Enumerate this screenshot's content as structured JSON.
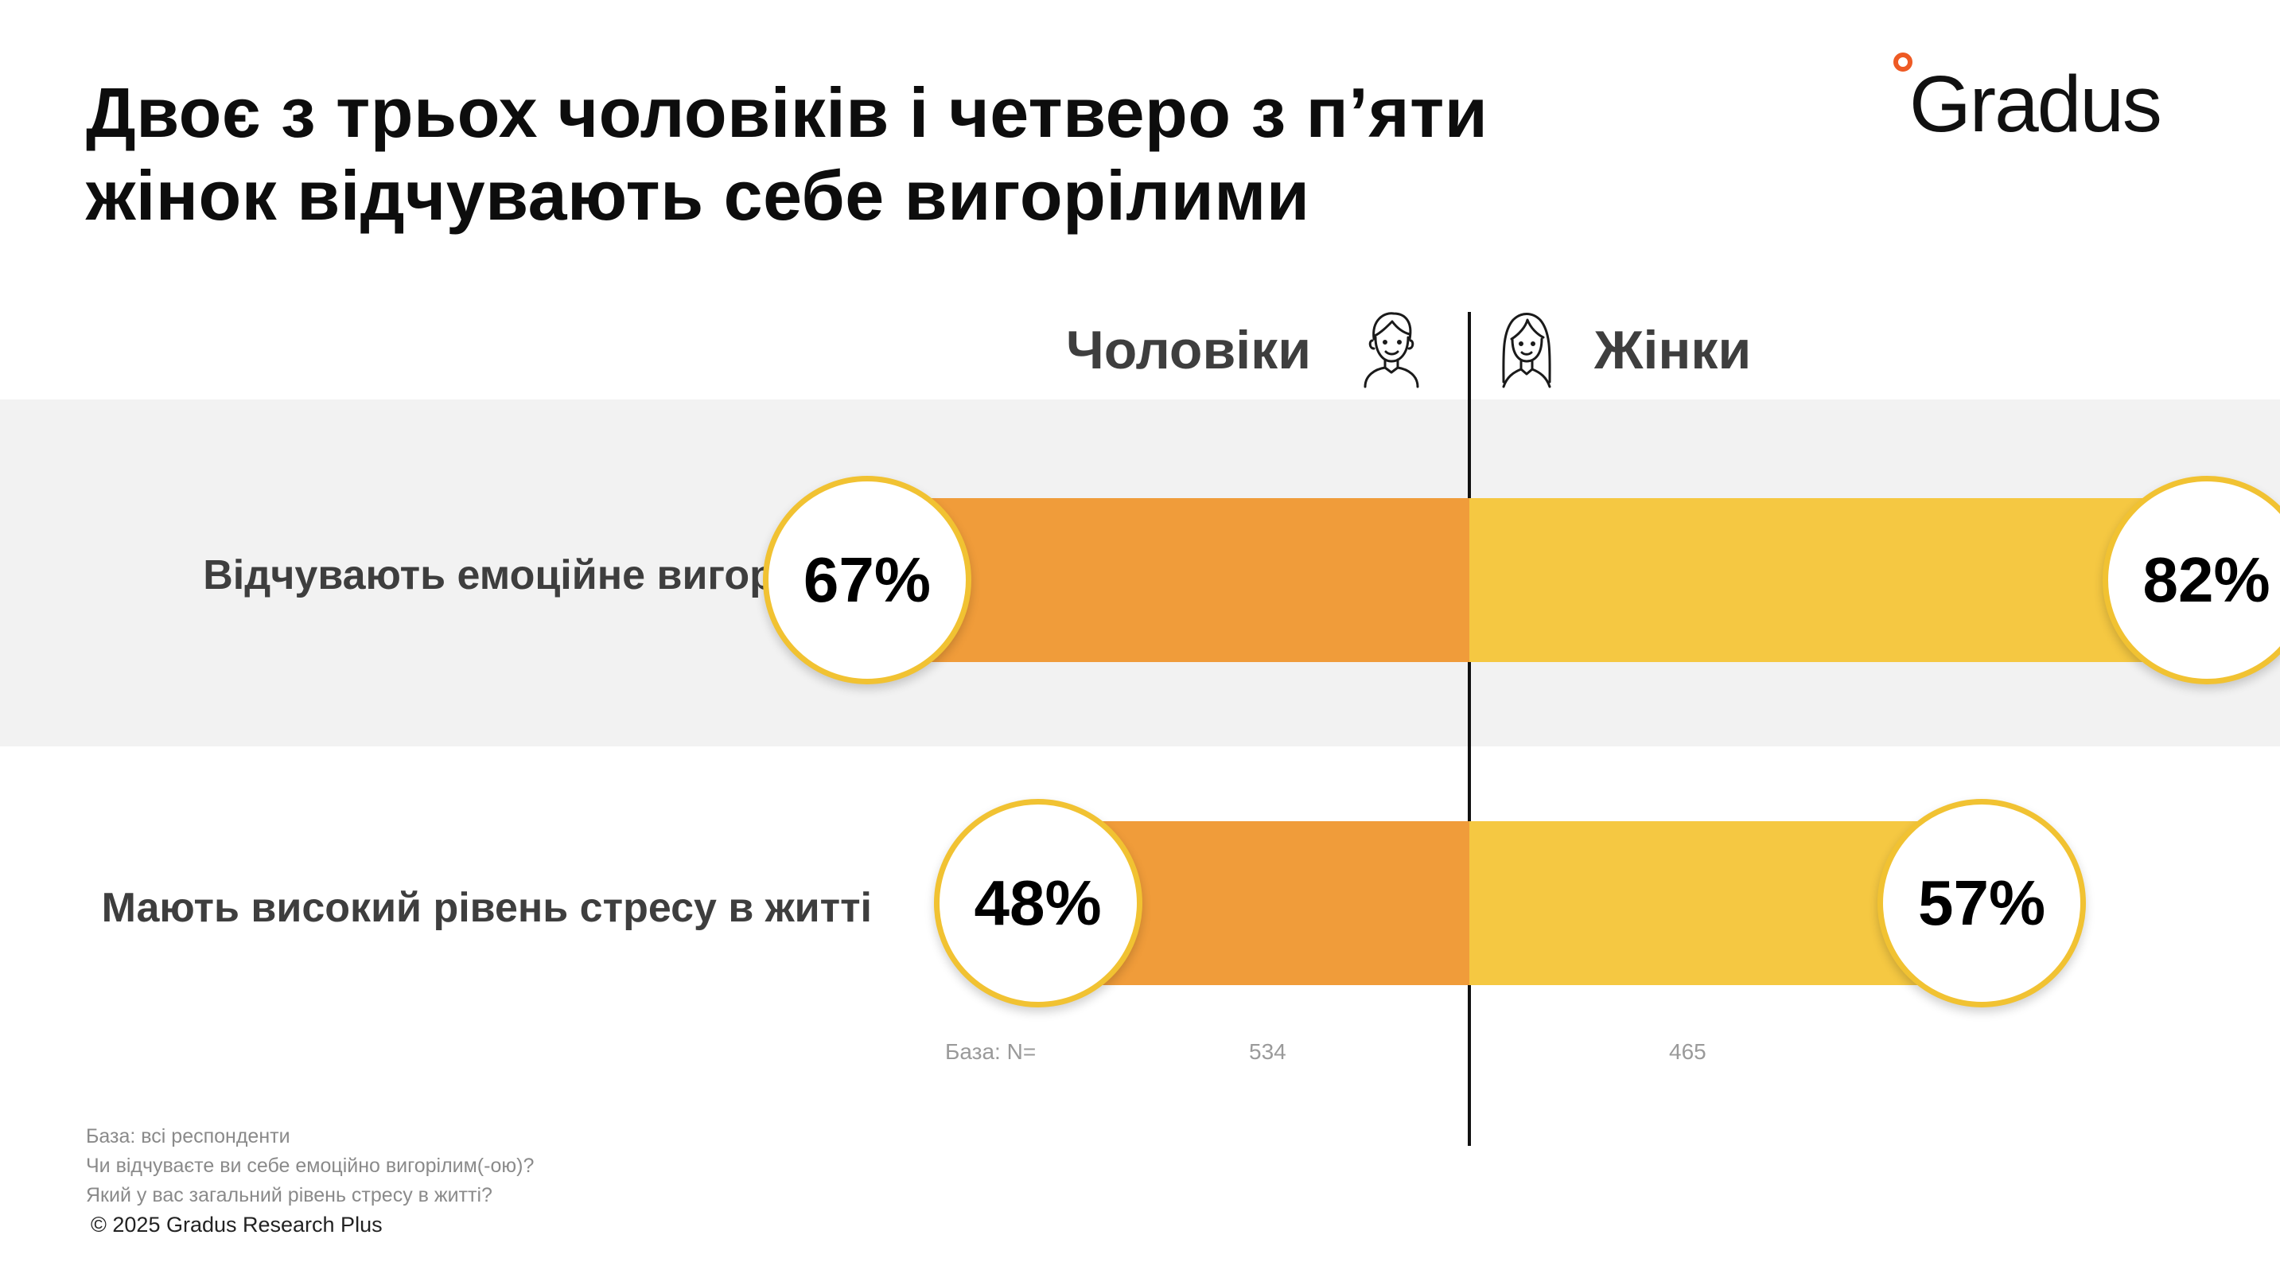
{
  "title": {
    "line1": "Двоє з трьох чоловіків і четверо з п’яти",
    "line2": "жінок відчувають себе вигорілими"
  },
  "logo": {
    "text": "Gradus",
    "accent_color": "#ee5a24"
  },
  "icons": {
    "men": "man-outline-icon",
    "women": "woman-outline-icon"
  },
  "chart_data": {
    "type": "bar",
    "orientation": "horizontal-diverging",
    "title": "",
    "xlabel": "",
    "ylabel": "",
    "xlim": [
      0,
      100
    ],
    "categories": [
      "Відчувають емоційне вигорання",
      "Мають високий рівень стресу в житті"
    ],
    "series": [
      {
        "name": "Чоловіки",
        "values": [
          67,
          48
        ],
        "labels": [
          "67%",
          "48%"
        ],
        "color": "#f09c3a"
      },
      {
        "name": "Жінки",
        "values": [
          82,
          57
        ],
        "labels": [
          "82%",
          "57%"
        ],
        "color": "#f5c842"
      }
    ],
    "base": {
      "label": "База: N=",
      "men": "534",
      "women": "465"
    }
  },
  "notes": {
    "line1": "База: всі респонденти",
    "line2": "Чи відчуваєте ви себе емоційно вигорілим(-ою)?",
    "line3": "Який у вас загальний рівень стресу в житті?"
  },
  "copyright": "© 2025 Gradus Research Plus"
}
